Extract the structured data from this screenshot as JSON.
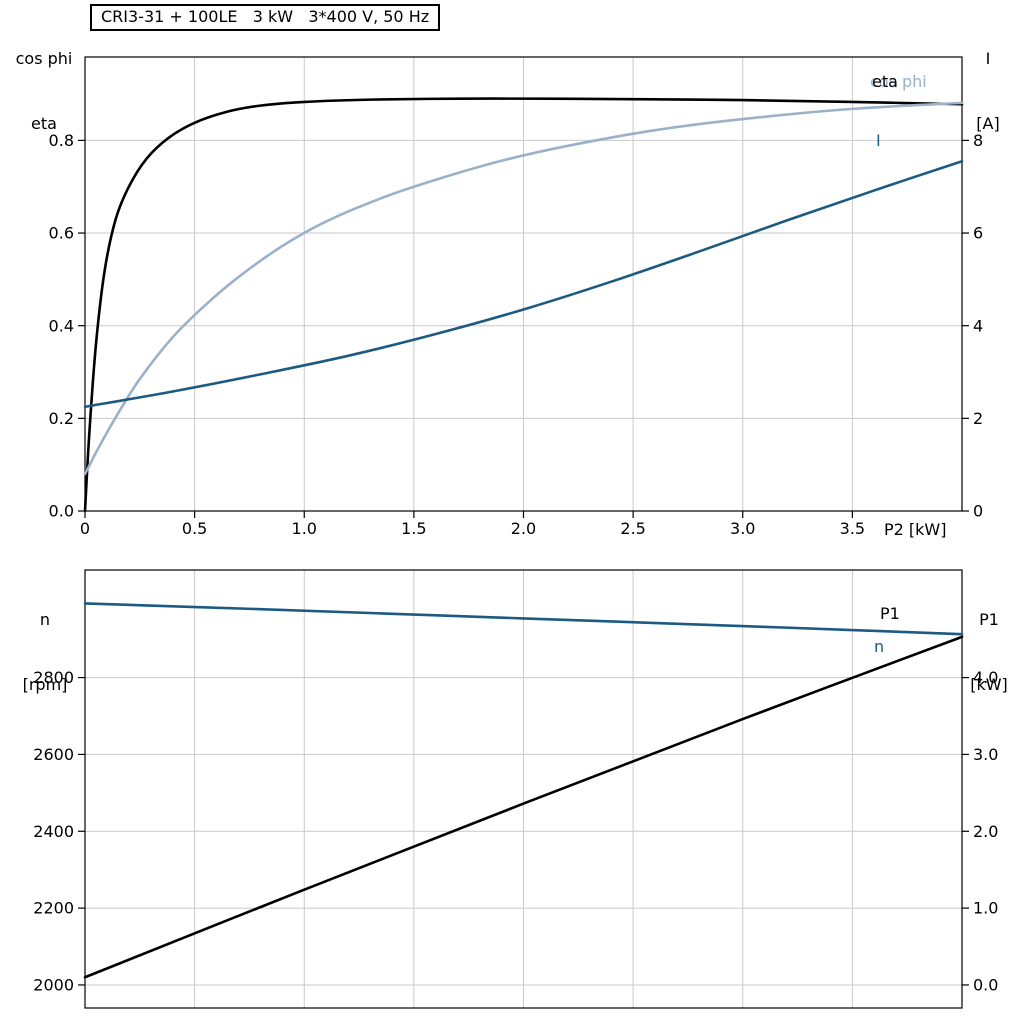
{
  "page": {
    "background": "#ffffff"
  },
  "colors": {
    "grid": "#c9c9c9",
    "frame": "#000000",
    "dark_blue": "#1c5a82",
    "light_blue": "#9ab1c9",
    "black": "#000000"
  },
  "chart_data": [
    {
      "type": "line",
      "title": "CRI3-31 + 100LE   3 kW   3*400 V, 50 Hz",
      "grid": true,
      "legend_position": "labels-at-right-edge",
      "x_axis": {
        "label": "P2 [kW]",
        "min": 0,
        "max": 4.0,
        "ticks": [
          0,
          0.5,
          1.0,
          1.5,
          2.0,
          2.5,
          3.0,
          3.5
        ],
        "tick_labels": [
          "0",
          "0.5",
          "1.0",
          "1.5",
          "2.0",
          "2.5",
          "3.0",
          "3.5"
        ],
        "show_ticks": true
      },
      "left_axis": {
        "label_lines": [
          "cos phi",
          "eta"
        ],
        "min": 0,
        "max": 0.98,
        "ticks": [
          0.0,
          0.2,
          0.4,
          0.6,
          0.8
        ],
        "tick_labels": [
          "0.0",
          "0.2",
          "0.4",
          "0.6",
          "0.8"
        ]
      },
      "right_axis": {
        "label_lines": [
          "I",
          "[A]"
        ],
        "min": 0,
        "max": 9.8,
        "ticks": [
          0,
          2,
          4,
          6,
          8
        ],
        "tick_labels": [
          "0",
          "2",
          "4",
          "6",
          "8"
        ]
      },
      "series": [
        {
          "name": "eta",
          "label": "eta",
          "axis": "left",
          "color": "#000000",
          "x": [
            0,
            0.02,
            0.05,
            0.09,
            0.14,
            0.2,
            0.28,
            0.38,
            0.5,
            0.65,
            0.8,
            1.0,
            1.3,
            1.7,
            2.1,
            2.5,
            3.0,
            3.5,
            4.0
          ],
          "y": [
            0,
            0.17,
            0.36,
            0.52,
            0.63,
            0.7,
            0.76,
            0.805,
            0.838,
            0.862,
            0.875,
            0.883,
            0.888,
            0.89,
            0.89,
            0.889,
            0.887,
            0.883,
            0.878
          ]
        },
        {
          "name": "cos phi",
          "label": "cos phi",
          "axis": "left",
          "color": "#9ab1c9",
          "x": [
            0,
            0.06,
            0.15,
            0.25,
            0.4,
            0.55,
            0.7,
            0.9,
            1.1,
            1.35,
            1.6,
            1.9,
            2.2,
            2.6,
            3.0,
            3.5,
            4.0
          ],
          "y": [
            0.08,
            0.135,
            0.21,
            0.285,
            0.375,
            0.445,
            0.505,
            0.572,
            0.625,
            0.675,
            0.715,
            0.756,
            0.788,
            0.822,
            0.846,
            0.868,
            0.881
          ]
        },
        {
          "name": "I",
          "label": "I",
          "axis": "right",
          "color": "#1c5a82",
          "x": [
            0,
            0.4,
            0.8,
            1.2,
            1.6,
            2.0,
            2.4,
            2.8,
            3.2,
            3.6,
            4.0
          ],
          "y": [
            2.25,
            2.58,
            2.95,
            3.35,
            3.82,
            4.35,
            4.95,
            5.6,
            6.27,
            6.92,
            7.55
          ]
        }
      ]
    },
    {
      "type": "line",
      "title": "",
      "grid": true,
      "legend_position": "labels-at-right-edge",
      "x_axis": {
        "label": "",
        "min": 0,
        "max": 4.0,
        "ticks": [
          0.5,
          1.0,
          1.5,
          2.0,
          2.5,
          3.0,
          3.5
        ],
        "tick_labels": [],
        "show_ticks": false
      },
      "left_axis": {
        "label_lines": [
          "n",
          "[rpm]"
        ],
        "min": 1940,
        "max": 3080,
        "ticks": [
          2000,
          2200,
          2400,
          2600,
          2800
        ],
        "tick_labels": [
          "2000",
          "2200",
          "2400",
          "2600",
          "2800"
        ]
      },
      "right_axis": {
        "label_lines": [
          "P1",
          "[kW]"
        ],
        "min": -0.3,
        "max": 5.4,
        "ticks": [
          0,
          1,
          2,
          3,
          4
        ],
        "tick_labels": [
          "0.0",
          "1.0",
          "2.0",
          "3.0",
          "4.0"
        ]
      },
      "series": [
        {
          "name": "n",
          "label": "n",
          "axis": "left",
          "color": "#1c5a82",
          "x": [
            0,
            0.8,
            1.6,
            2.4,
            3.2,
            4.0
          ],
          "y": [
            2993,
            2978,
            2962,
            2946,
            2930,
            2913
          ]
        },
        {
          "name": "P1",
          "label": "P1",
          "axis": "right",
          "color": "#000000",
          "x": [
            0,
            1.0,
            2.0,
            3.0,
            4.0
          ],
          "y": [
            0.1,
            1.24,
            2.36,
            3.46,
            4.53
          ]
        }
      ]
    }
  ]
}
